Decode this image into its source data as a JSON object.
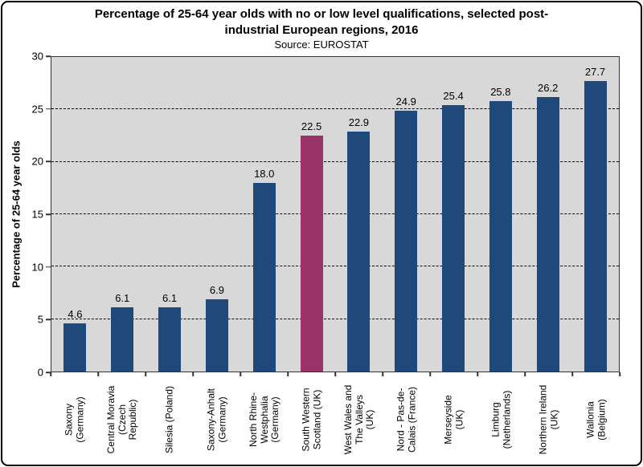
{
  "header": {
    "title": "Percentage of 25-64 year olds with no or low level qualifications, selected post-\nindustrial European regions, 2016",
    "subtitle": "Source: EUROSTAT"
  },
  "chart_data": {
    "type": "bar",
    "title": "Percentage of 25-64 year olds with no or low level qualifications, selected post-industrial European regions, 2016",
    "subtitle": "Source: EUROSTAT",
    "xlabel": "",
    "ylabel": "Percentage of 25-64 year olds",
    "ylim": [
      0,
      30
    ],
    "yticks": [
      0,
      5,
      10,
      15,
      20,
      25,
      30
    ],
    "grid": "horizontal dashed, plot background gray",
    "legend_position": "none",
    "categories": [
      "Saxony (Germany)",
      "Central Moravia (Czech Republic)",
      "Silesia (Poland)",
      "Saxony-Anhalt (Germany)",
      "North Rhine-Westphalia (Germany)",
      "South Western Scotland (UK)",
      "West Wales and The Valleys (UK)",
      "Nord - Pas-de-Calais (France)",
      "Merseyside (UK)",
      "Limburg (Netherlands)",
      "Northern Ireland (UK)",
      "Wallonia (Belgium)"
    ],
    "category_display": [
      "Saxony\n(Germany)",
      "Central Moravia\n(Czech\nRepublic)",
      "Silesia (Poland)",
      "Saxony-Anhalt\n(Germany)",
      "North Rhine-\nWestphalia\n(Germany)",
      "South Western\nScotland (UK)",
      "West Wales and\nThe Valleys\n(UK)",
      "Nord - Pas-de-\nCalais (France)",
      "Merseyside\n(UK)",
      "Limburg\n(Netherlands)",
      "Northern Ireland\n(UK)",
      "Wallonia\n(Belgium)"
    ],
    "values": [
      4.6,
      6.1,
      6.1,
      6.9,
      18.0,
      22.5,
      22.9,
      24.9,
      25.4,
      25.8,
      26.2,
      27.7
    ],
    "value_labels": [
      "4.6",
      "6.1",
      "6.1",
      "6.9",
      "18.0",
      "22.5",
      "22.9",
      "24.9",
      "25.4",
      "25.8",
      "26.2",
      "27.7"
    ],
    "highlight_index": 5,
    "colors": {
      "bar": "#20497B",
      "highlight": "#9A3367",
      "plot_background": "#D8D8D8",
      "gridline": "#000000",
      "axis": "#333333"
    }
  }
}
